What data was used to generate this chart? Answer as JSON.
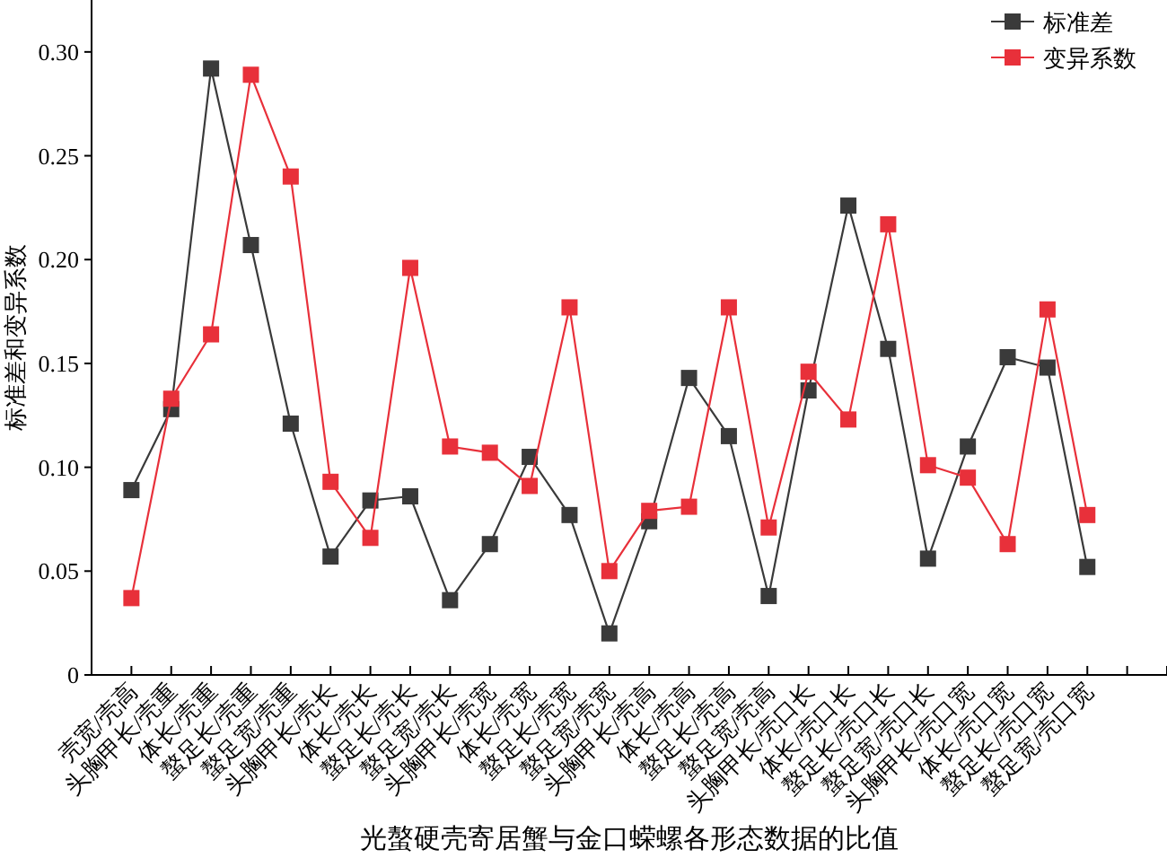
{
  "chart_data": {
    "type": "line",
    "xlabel": "光螯硬壳寄居蟹与金口蝾螺各形态数据的比值",
    "ylabel": "标准差和变异系数",
    "categories": [
      "壳宽/壳高",
      "头胸甲长/壳重",
      "体长/壳重",
      "螯足长/壳重",
      "螯足宽/壳重",
      "头胸甲长/壳长",
      "体长/壳长",
      "螯足长/壳长",
      "螯足宽/壳长",
      "头胸甲长/壳宽",
      "体长/壳宽",
      "螯足长/壳宽",
      "螯足宽/壳宽",
      "头胸甲长/壳高",
      "体长/壳高",
      "螯足长/壳高",
      "螯足宽/壳高",
      "头胸甲长/壳口长",
      "体长/壳口长",
      "螯足长/壳口长",
      "螯足宽/壳口长",
      "头胸甲长/壳口宽",
      "体长/壳口宽",
      "螯足长/壳口宽",
      "螯足宽/壳口宽"
    ],
    "series": [
      {
        "name": "标准差",
        "color": "#3a3a3a",
        "values": [
          0.089,
          0.128,
          0.292,
          0.207,
          0.121,
          0.057,
          0.084,
          0.086,
          0.036,
          0.063,
          0.105,
          0.077,
          0.02,
          0.074,
          0.143,
          0.115,
          0.038,
          0.137,
          0.226,
          0.157,
          0.056,
          0.11,
          0.153,
          0.148,
          0.052
        ]
      },
      {
        "name": "变异系数",
        "color": "#e8303a",
        "values": [
          0.037,
          0.133,
          0.164,
          0.289,
          0.24,
          0.093,
          0.066,
          0.196,
          0.11,
          0.107,
          0.091,
          0.177,
          0.05,
          0.079,
          0.081,
          0.177,
          0.071,
          0.146,
          0.123,
          0.217,
          0.101,
          0.095,
          0.063,
          0.176,
          0.077
        ]
      }
    ],
    "ylim": [
      0,
      0.325
    ],
    "yticks": [
      {
        "value": 0,
        "label": "0"
      },
      {
        "value": 0.05,
        "label": "0.05"
      },
      {
        "value": 0.1,
        "label": "0.10"
      },
      {
        "value": 0.15,
        "label": "0.15"
      },
      {
        "value": 0.2,
        "label": "0.20"
      },
      {
        "value": 0.25,
        "label": "0.25"
      },
      {
        "value": 0.3,
        "label": "0.30"
      }
    ],
    "legend": "top right",
    "marker": "square",
    "line_style": "solid",
    "grid": false
  }
}
